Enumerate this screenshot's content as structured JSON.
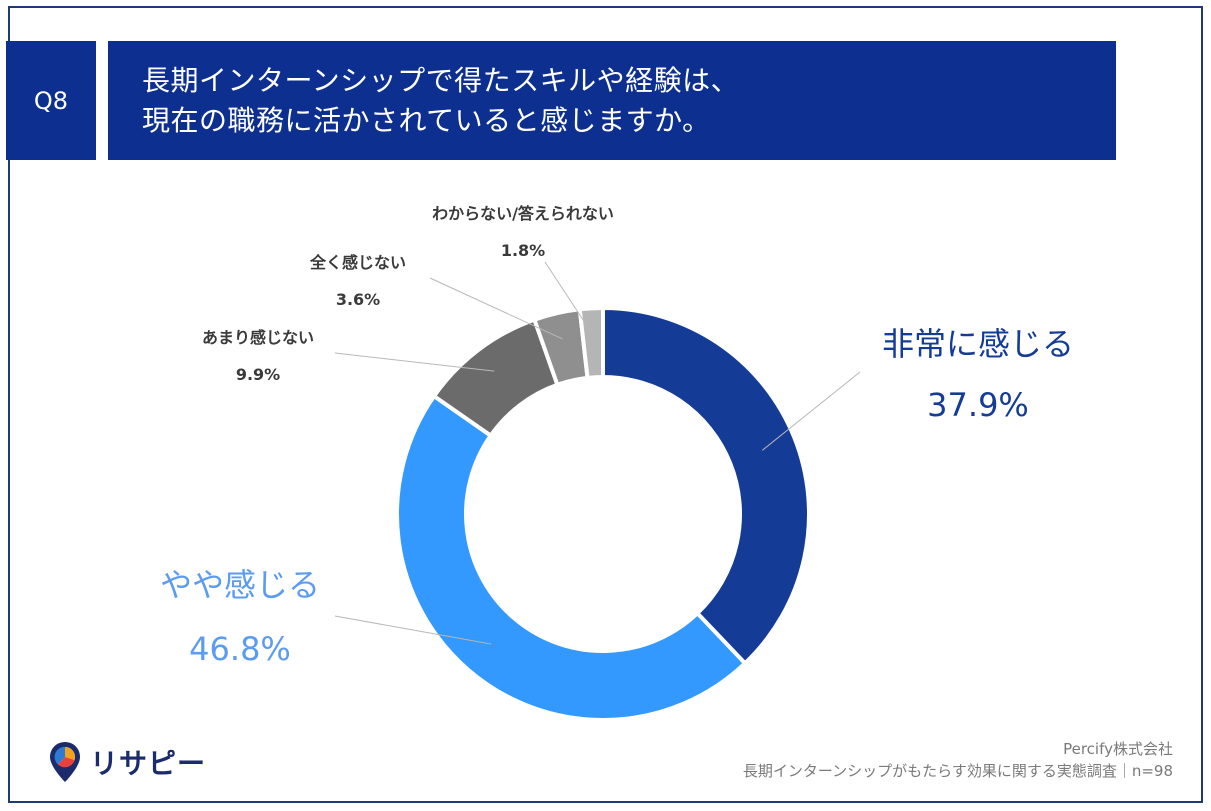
{
  "header": {
    "question_id": "Q8",
    "title_line1": "長期インターンシップで得たスキルや経験は、",
    "title_line2": "現在の職務に活かされていると感じますか。"
  },
  "chart_data": {
    "type": "pie",
    "donut": true,
    "slices": [
      {
        "label": "非常に感じる",
        "value": 37.9,
        "value_label": "37.9%",
        "color": "#143c96",
        "label_color": "#143c96"
      },
      {
        "label": "やや感じる",
        "value": 46.8,
        "value_label": "46.8%",
        "color": "#3399ff",
        "label_color": "#5b9bf0"
      },
      {
        "label": "あまり感じない",
        "value": 9.9,
        "value_label": "9.9%",
        "color": "#6b6b6b",
        "label_color": "#3a3a3a"
      },
      {
        "label": "全く感じない",
        "value": 3.6,
        "value_label": "3.6%",
        "color": "#8f8f8f",
        "label_color": "#3a3a3a"
      },
      {
        "label": "わからない/答えられない",
        "value": 1.8,
        "value_label": "1.8%",
        "color": "#b5b5b5",
        "label_color": "#3a3a3a"
      }
    ]
  },
  "footer": {
    "company": "Percify株式会社",
    "survey": "長期インターンシップがもたらす効果に関する実態調査｜n=98"
  },
  "logo": {
    "text": "リサピー",
    "icon": "pin-logo-icon"
  }
}
